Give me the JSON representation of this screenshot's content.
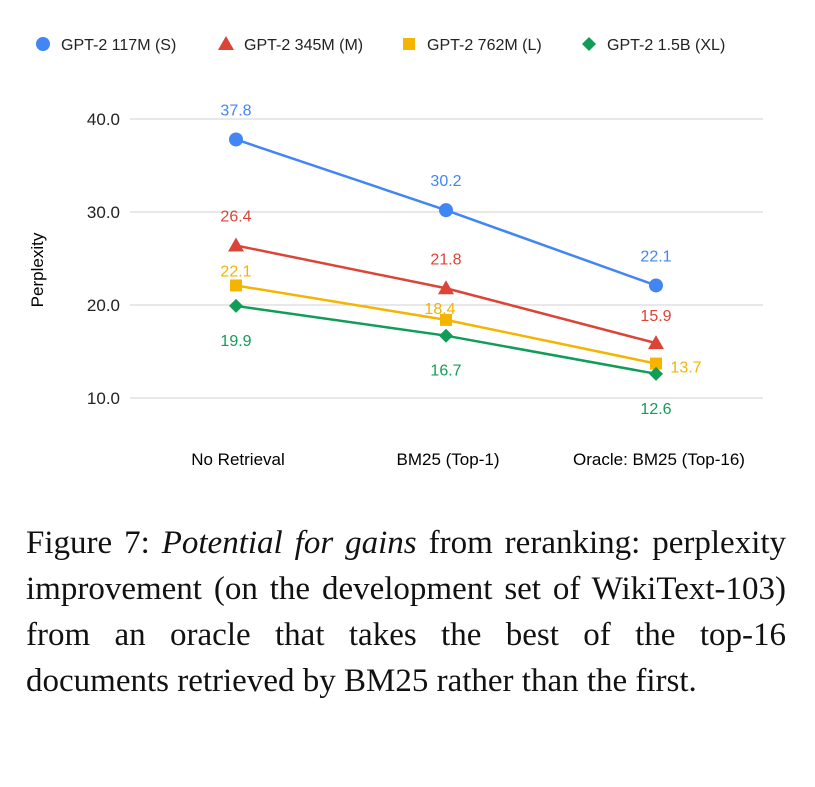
{
  "chart_data": {
    "type": "line",
    "categories": [
      "No Retrieval",
      "BM25 (Top-1)",
      "Oracle: BM25 (Top-16)"
    ],
    "series": [
      {
        "name": "GPT-2 117M (S)",
        "color": "#4285F4",
        "marker": "circle",
        "values": [
          37.8,
          30.2,
          22.1
        ]
      },
      {
        "name": "GPT-2 345M (M)",
        "color": "#DB4437",
        "marker": "triangle",
        "values": [
          26.4,
          21.8,
          15.9
        ]
      },
      {
        "name": "GPT-2 762M (L)",
        "color": "#F4B400",
        "marker": "square",
        "values": [
          22.1,
          18.4,
          13.7
        ]
      },
      {
        "name": "GPT-2 1.5B (XL)",
        "color": "#0F9D58",
        "marker": "diamond",
        "values": [
          19.9,
          16.7,
          12.6
        ]
      }
    ],
    "ylabel": "Perplexity",
    "yticks": [
      "40.0",
      "30.0",
      "20.0",
      "10.0"
    ],
    "ylim": [
      10,
      40
    ],
    "grid": true,
    "legend": "top"
  },
  "caption": {
    "label": "Figure 7:",
    "emphasis": "Potential for gains",
    "text": "from reranking: perplexity improvement (on the development set of WikiText-103) from an oracle that takes the best of the top-16 documents retrieved by BM25 rather than the first."
  }
}
